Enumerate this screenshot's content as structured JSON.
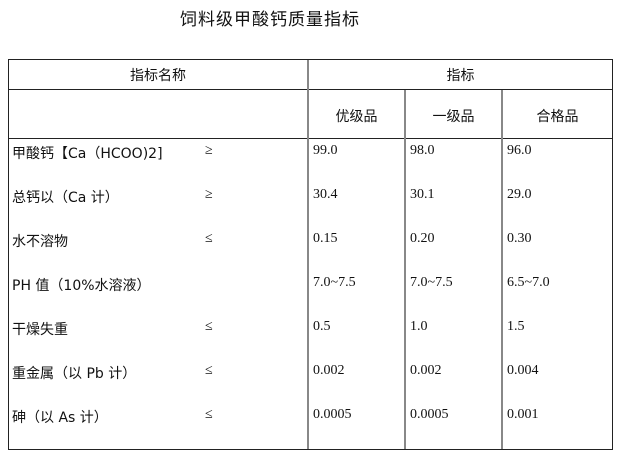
{
  "title": "饲料级甲酸钙质量指标",
  "header": {
    "name_col": "指标名称",
    "spec_col": "指标",
    "grades": [
      "优级品",
      "一级品",
      "合格品"
    ]
  },
  "rows": [
    {
      "name": "甲酸钙【Ca（HCOO)2]",
      "symbol": "≥",
      "values": [
        "99.0",
        "98.0",
        "96.0"
      ]
    },
    {
      "name": "总钙以（Ca 计）",
      "symbol": "≥",
      "values": [
        "30.4",
        "30.1",
        "29.0"
      ]
    },
    {
      "name": "水不溶物",
      "symbol": "≤",
      "values": [
        "0.15",
        "0.20",
        "0.30"
      ]
    },
    {
      "name": "PH 值（10%水溶液）",
      "symbol": "",
      "values": [
        "7.0~7.5",
        "7.0~7.5",
        "6.5~7.0"
      ]
    },
    {
      "name": "干燥失重",
      "symbol": "≤",
      "values": [
        "0.5",
        "1.0",
        "1.5"
      ]
    },
    {
      "name": "重金属（以 Pb 计）",
      "symbol": "≤",
      "values": [
        "0.002",
        "0.002",
        "0.004"
      ]
    },
    {
      "name": "砷（以 As 计）",
      "symbol": "≤",
      "values": [
        "0.0005",
        "0.0005",
        "0.001"
      ]
    }
  ]
}
